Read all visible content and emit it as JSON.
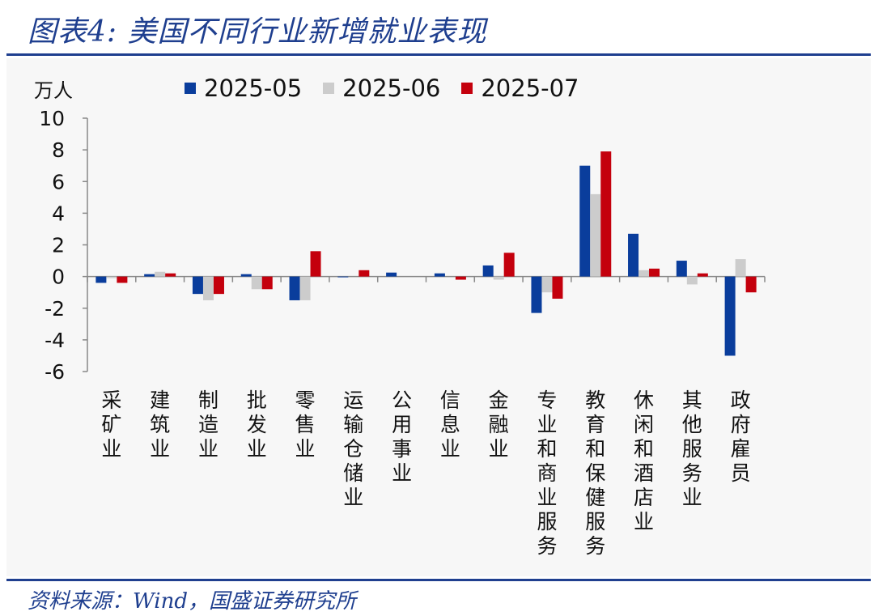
{
  "title": "图表4:  美国不同行业新增就业表现",
  "source": "资料来源：Wind，国盛证券研究所",
  "colors": {
    "brand": "#1f3f8f",
    "series_2025_05": "#0a3d9c",
    "series_2025_06": "#cccccc",
    "series_2025_07": "#c4000d"
  },
  "chart_data": {
    "type": "bar",
    "title": "美国不同行业新增就业表现",
    "ylabel": "万人",
    "xlabel": "",
    "ylim": [
      -6,
      10
    ],
    "yticks": [
      10,
      8,
      6,
      4,
      2,
      0,
      -2,
      -4,
      -6
    ],
    "grid": false,
    "legend_position": "top",
    "categories": [
      "采矿业",
      "建筑业",
      "制造业",
      "批发业",
      "零售业",
      "运输仓储业",
      "公用事业",
      "信息业",
      "金融业",
      "专业和商业服务",
      "教育和保健服务",
      "休闲和酒店业",
      "其他服务业",
      "政府雇员"
    ],
    "series": [
      {
        "name": "2025-05",
        "color": "#0a3d9c",
        "values": [
          -0.4,
          0.15,
          -1.1,
          0.15,
          -1.5,
          -0.05,
          0.25,
          0.2,
          0.7,
          -2.3,
          7.0,
          2.7,
          1.0,
          -5.0
        ]
      },
      {
        "name": "2025-06",
        "color": "#cccccc",
        "values": [
          -0.1,
          0.3,
          -1.5,
          -0.8,
          -1.5,
          0.0,
          0.0,
          0.0,
          -0.2,
          -1.0,
          5.2,
          0.4,
          -0.5,
          1.1
        ]
      },
      {
        "name": "2025-07",
        "color": "#c4000d",
        "values": [
          -0.4,
          0.2,
          -1.1,
          -0.8,
          1.6,
          0.4,
          0.0,
          -0.2,
          1.5,
          -1.4,
          7.9,
          0.5,
          0.2,
          -1.0
        ]
      }
    ]
  }
}
